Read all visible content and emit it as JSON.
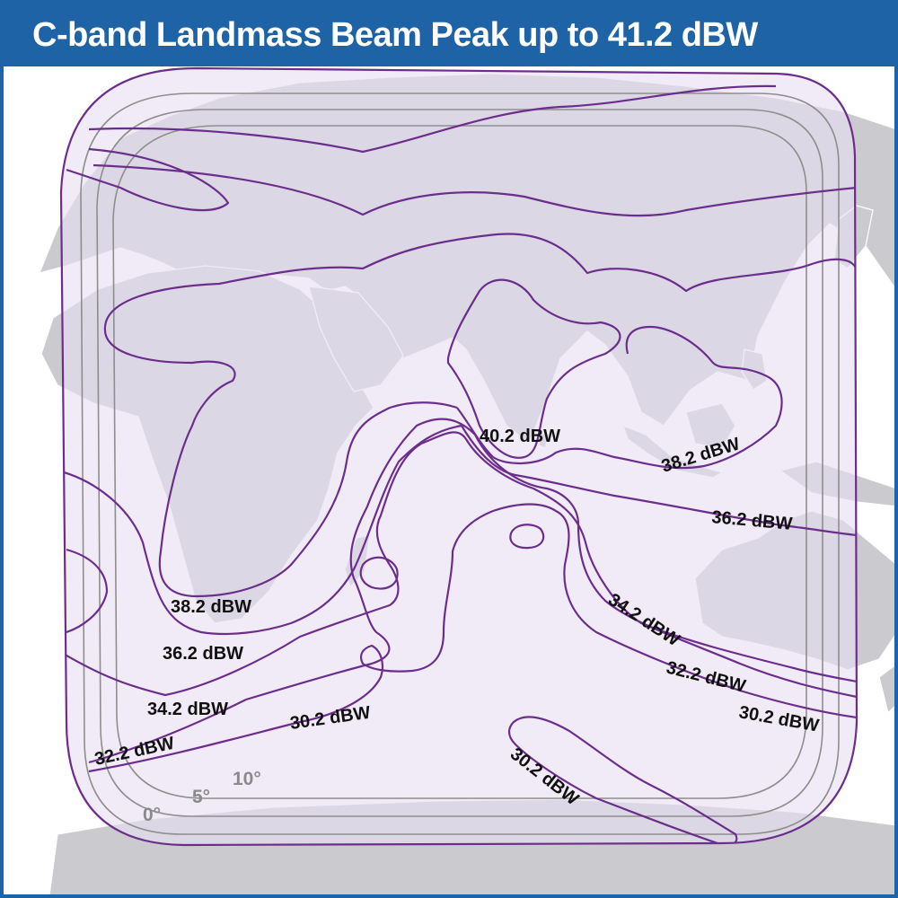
{
  "title": "C-band Landmass Beam Peak up to 41.2 dBW",
  "colors": {
    "header": "#1d63a6",
    "land": "#cbcbcf",
    "beam_fill": "#e6def0",
    "contour": "#6c2e8c",
    "elevation_rings": "#8e8e8e"
  },
  "contour_labels": {
    "c40_2": "40.2 dBW",
    "c38_2_asia": "38.2 dBW",
    "c36_2_east": "36.2 dBW",
    "c34_2_east": "34.2 dBW",
    "c32_2_east": "32.2 dBW",
    "c30_2_east": "30.2 dBW",
    "c38_2_west": "38.2 dBW",
    "c36_2_west": "36.2 dBW",
    "c34_2_west": "34.2 dBW",
    "c30_2_south": "30.2 dBW",
    "c32_2_west": "32.2 dBW",
    "c30_2_antarctic": "30.2 dBW"
  },
  "elevation_labels": {
    "e0": "0°",
    "e5": "5°",
    "e10": "10°"
  }
}
